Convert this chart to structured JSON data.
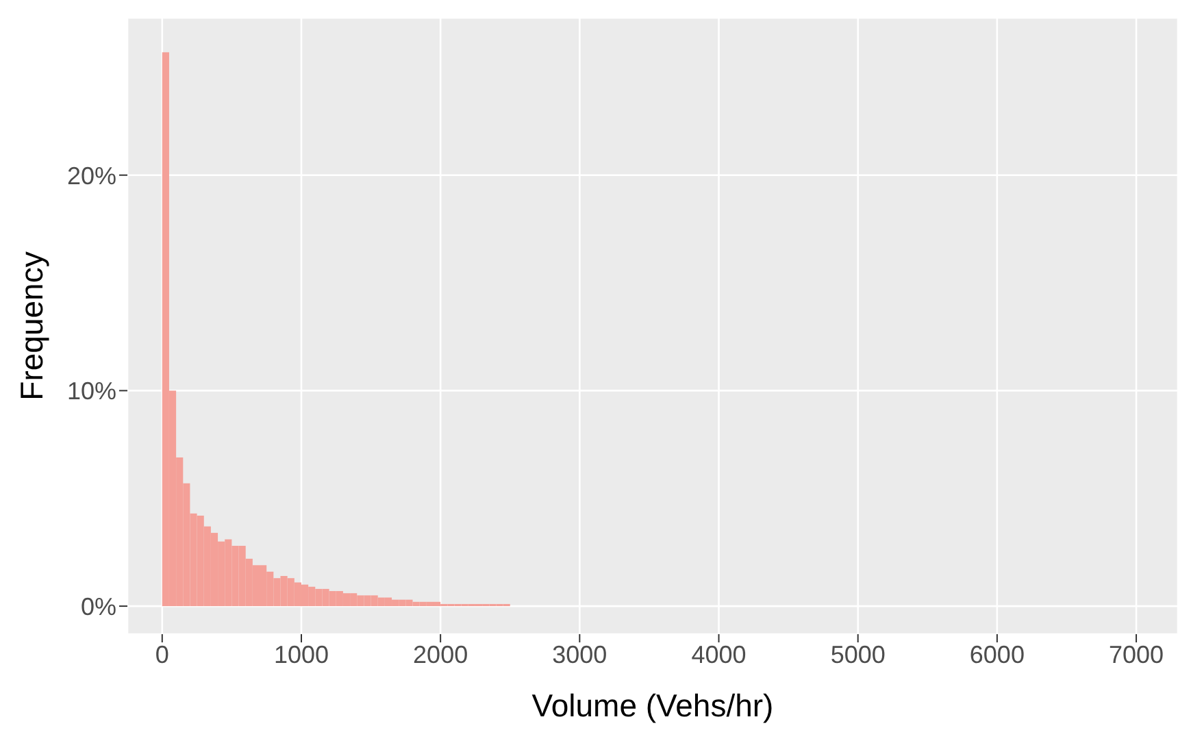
{
  "chart_data": {
    "type": "histogram",
    "xlabel": "Volume (Vehs/hr)",
    "ylabel": "Frequency",
    "color": "#f4a098",
    "bins": [
      0,
      50,
      100,
      150,
      200,
      250,
      300,
      350,
      400,
      450,
      500,
      550,
      600,
      650,
      700,
      750,
      800,
      850,
      900,
      950,
      1000,
      1050,
      1100,
      1150,
      1200,
      1250,
      1300,
      1350,
      1400,
      1450,
      1500,
      1550,
      1600,
      1650,
      1700,
      1750,
      1800,
      1850,
      1900,
      1950,
      2000,
      2050,
      2100,
      2150,
      2200,
      2250,
      2300,
      2350,
      2400,
      2450,
      2500
    ],
    "values": [
      25.7,
      10,
      6.9,
      5.7,
      4.3,
      4.2,
      3.7,
      3.4,
      3.0,
      3.1,
      2.8,
      2.8,
      2.2,
      1.9,
      1.9,
      1.6,
      1.3,
      1.4,
      1.3,
      1.1,
      1.0,
      0.9,
      0.8,
      0.8,
      0.7,
      0.7,
      0.6,
      0.6,
      0.5,
      0.5,
      0.5,
      0.4,
      0.4,
      0.3,
      0.3,
      0.3,
      0.2,
      0.2,
      0.2,
      0.2,
      0.1,
      0.1,
      0.1,
      0.1,
      0.1,
      0.1,
      0.1,
      0.1,
      0.1,
      0.1
    ],
    "xlim": [
      -250,
      7300
    ],
    "xticks": [
      0,
      1000,
      2000,
      3000,
      4000,
      5000,
      6000,
      7000
    ],
    "ylim": [
      -1.3,
      27.3
    ],
    "yticks": [
      {
        "value": 0,
        "label": "0%"
      },
      {
        "value": 10,
        "label": "10%"
      },
      {
        "value": 20,
        "label": "20%"
      }
    ],
    "grid": true
  }
}
